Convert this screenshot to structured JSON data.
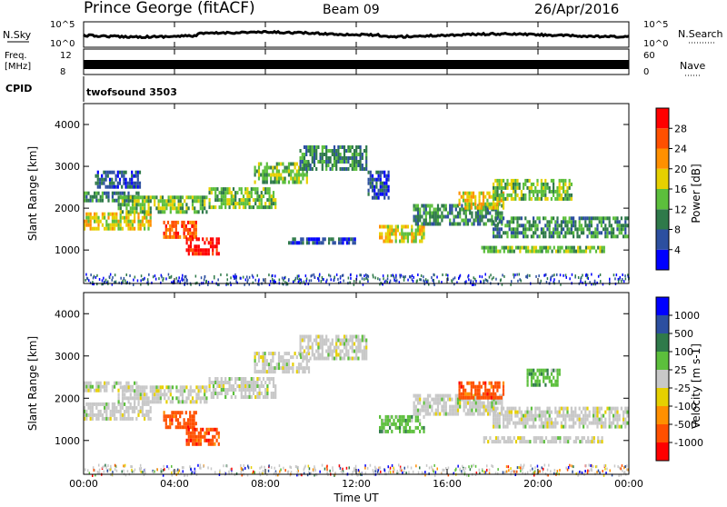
{
  "header": {
    "station": "Prince George (fitACF)",
    "beam": "Beam 09",
    "date": "26/Apr/2016"
  },
  "top_panels": {
    "nsky_label": "N.Sky",
    "nsky_ticks": [
      "10^5",
      "10^0"
    ],
    "nsearch_label": "N.Search",
    "nsearch_ticks": [
      "10^5",
      "10^0"
    ],
    "freq_label_1": "Freq.",
    "freq_label_2": "[MHz]",
    "freq_ticks": [
      "12",
      "8"
    ],
    "nave_label": "Nave",
    "nave_ticks": [
      "60",
      "0"
    ],
    "cpid_label": "CPID",
    "cpid_value": "twofsound 3503"
  },
  "chart_data": [
    {
      "type": "heatmap",
      "name": "power",
      "ylabel": "Slant Range [km]",
      "ylim": [
        200,
        4500
      ],
      "y_ticks": [
        "4000",
        "3000",
        "2000",
        "1000"
      ],
      "colorbar_label": "Power [dB]",
      "colorbar_ticks": [
        "28",
        "24",
        "20",
        "16",
        "12",
        "8",
        "4"
      ],
      "colors": [
        "#0000ff",
        "#2c4fa0",
        "#2f7a4a",
        "#5cbf3c",
        "#e6d000",
        "#ff9000",
        "#ff5000",
        "#ff0000"
      ],
      "bands": [
        {
          "t0": 0.0,
          "t1": 3.0,
          "r0": 1450,
          "r1": 1900,
          "level": 4
        },
        {
          "t0": 0.0,
          "t1": 2.5,
          "r0": 2100,
          "r1": 2400,
          "level": 2
        },
        {
          "t0": 0.5,
          "t1": 2.5,
          "r0": 2500,
          "r1": 2900,
          "level": 1
        },
        {
          "t0": 1.5,
          "t1": 5.5,
          "r0": 1900,
          "r1": 2300,
          "level": 3
        },
        {
          "t0": 3.5,
          "t1": 5.0,
          "r0": 1300,
          "r1": 1700,
          "level": 6
        },
        {
          "t0": 4.5,
          "t1": 6.0,
          "r0": 900,
          "r1": 1300,
          "level": 7
        },
        {
          "t0": 5.5,
          "t1": 8.5,
          "r0": 2000,
          "r1": 2500,
          "level": 3
        },
        {
          "t0": 7.5,
          "t1": 10.0,
          "r0": 2600,
          "r1": 3100,
          "level": 3
        },
        {
          "t0": 9.5,
          "t1": 12.5,
          "r0": 2900,
          "r1": 3500,
          "level": 2
        },
        {
          "t0": 12.5,
          "t1": 13.5,
          "r0": 2200,
          "r1": 2900,
          "level": 1
        },
        {
          "t0": 13.0,
          "t1": 15.0,
          "r0": 1200,
          "r1": 1600,
          "level": 4
        },
        {
          "t0": 14.5,
          "t1": 18.5,
          "r0": 1600,
          "r1": 2100,
          "level": 2
        },
        {
          "t0": 16.5,
          "t1": 18.5,
          "r0": 2000,
          "r1": 2400,
          "level": 4
        },
        {
          "t0": 18.0,
          "t1": 21.5,
          "r0": 2200,
          "r1": 2700,
          "level": 3
        },
        {
          "t0": 18.0,
          "t1": 24.0,
          "r0": 1300,
          "r1": 1800,
          "level": 2
        },
        {
          "t0": 17.5,
          "t1": 23.0,
          "r0": 900,
          "r1": 1100,
          "level": 3
        },
        {
          "t0": 9.0,
          "t1": 12.0,
          "r0": 1100,
          "r1": 1300,
          "level": 1
        }
      ]
    },
    {
      "type": "heatmap",
      "name": "velocity",
      "ylabel": "Slant Range [km]",
      "ylim": [
        200,
        4500
      ],
      "y_ticks": [
        "4000",
        "3000",
        "2000",
        "1000"
      ],
      "colorbar_label": "Velocity [m s-1]",
      "colorbar_ticks": [
        "1000",
        "500",
        "100",
        "25",
        "-25",
        "-100",
        "-500",
        "-1000"
      ],
      "colors": [
        "#ff0000",
        "#ff5000",
        "#ff9000",
        "#e6d000",
        "#c8c8c8",
        "#5cbf3c",
        "#2f7a4a",
        "#2c4fa0",
        "#0000ff"
      ],
      "bands": [
        {
          "t0": 0.0,
          "t1": 3.0,
          "r0": 1450,
          "r1": 1900,
          "level": 4
        },
        {
          "t0": 0.0,
          "t1": 2.5,
          "r0": 2100,
          "r1": 2400,
          "level": 4
        },
        {
          "t0": 1.5,
          "t1": 5.5,
          "r0": 1900,
          "r1": 2300,
          "level": 4
        },
        {
          "t0": 3.5,
          "t1": 5.0,
          "r0": 1300,
          "r1": 1700,
          "level": 1
        },
        {
          "t0": 4.5,
          "t1": 6.0,
          "r0": 900,
          "r1": 1300,
          "level": 1
        },
        {
          "t0": 5.5,
          "t1": 8.5,
          "r0": 2000,
          "r1": 2500,
          "level": 4
        },
        {
          "t0": 7.5,
          "t1": 10.0,
          "r0": 2600,
          "r1": 3100,
          "level": 4
        },
        {
          "t0": 9.5,
          "t1": 12.5,
          "r0": 2900,
          "r1": 3500,
          "level": 4
        },
        {
          "t0": 13.0,
          "t1": 15.0,
          "r0": 1200,
          "r1": 1600,
          "level": 5
        },
        {
          "t0": 14.5,
          "t1": 18.5,
          "r0": 1600,
          "r1": 2100,
          "level": 4
        },
        {
          "t0": 16.5,
          "t1": 18.5,
          "r0": 2000,
          "r1": 2400,
          "level": 1
        },
        {
          "t0": 19.5,
          "t1": 21.0,
          "r0": 2300,
          "r1": 2700,
          "level": 5
        },
        {
          "t0": 18.0,
          "t1": 24.0,
          "r0": 1300,
          "r1": 1800,
          "level": 4
        },
        {
          "t0": 17.5,
          "t1": 23.0,
          "r0": 900,
          "r1": 1100,
          "level": 4
        }
      ]
    }
  ],
  "x_axis": {
    "label": "Time UT",
    "ticks": [
      "00:00",
      "04:00",
      "08:00",
      "12:00",
      "16:00",
      "20:00",
      "00:00"
    ],
    "xlim": [
      0,
      24
    ]
  }
}
